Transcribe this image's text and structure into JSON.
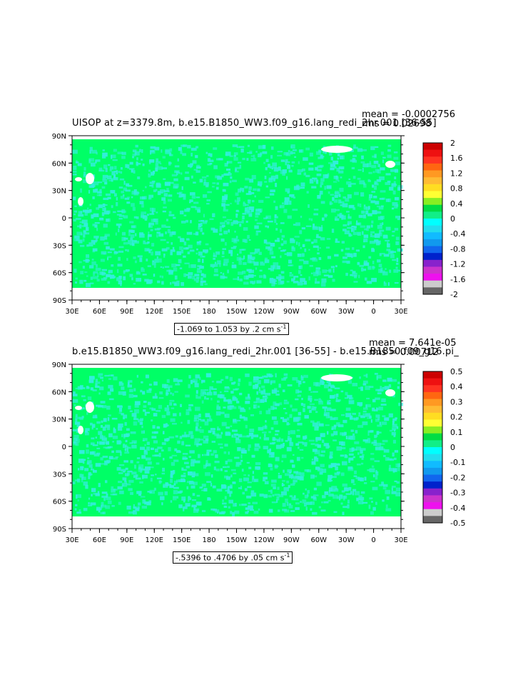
{
  "maps": [
    {
      "title": "UISOP at z=3379.8m, b.e15.B1850_WW3.f09_g16.lang_redi_2hr.001 [36-55]",
      "mean": "mean = -0.0002756",
      "rms": "rms = 0.02698",
      "range_note": "-1.069 to 1.053 by .2 cm s",
      "range_unit_exp": "-1",
      "lat_ticks": [
        "90N",
        "60N",
        "30N",
        "0",
        "30S",
        "60S",
        "90S"
      ],
      "lon_ticks": [
        "30E",
        "60E",
        "90E",
        "120E",
        "150E",
        "180",
        "150W",
        "120W",
        "90W",
        "60W",
        "30W",
        "0",
        "30E"
      ],
      "colorbar_labels": [
        "2",
        "1.6",
        "1.2",
        "0.8",
        "0.4",
        "0",
        "-0.4",
        "-0.8",
        "-1.2",
        "-1.6",
        "-2"
      ],
      "colorbar_colors": [
        "#cc0000",
        "#ee1111",
        "#ff3322",
        "#ff6611",
        "#ff9922",
        "#ffbb33",
        "#ffdd22",
        "#ffff33",
        "#88ee22",
        "#00dd44",
        "#11ee88",
        "#00ffff",
        "#22ddee",
        "#11bbff",
        "#1199ee",
        "#1166ee",
        "#0022cc",
        "#8822cc",
        "#cc33cc",
        "#ee11ee",
        "#cccccc",
        "#666666"
      ]
    },
    {
      "title": "b.e15.B1850_WW3.f09_g16.lang_redi_2hr.001 [36-55] - b.e15.B1850.f09_g16.pi_",
      "mean": "mean = 7.641e-05",
      "rms": "rms = 0.00712",
      "range_note": "-.5396 to .4706 by .05 cm s",
      "range_unit_exp": "-1",
      "lat_ticks": [
        "90N",
        "60N",
        "30N",
        "0",
        "30S",
        "60S",
        "90S"
      ],
      "lon_ticks": [
        "30E",
        "60E",
        "90E",
        "120E",
        "150E",
        "180",
        "150W",
        "120W",
        "90W",
        "60W",
        "30W",
        "0",
        "30E"
      ],
      "colorbar_labels": [
        "0.5",
        "0.4",
        "0.3",
        "0.2",
        "0.1",
        "0",
        "-0.1",
        "-0.2",
        "-0.3",
        "-0.4",
        "-0.5"
      ],
      "colorbar_colors": [
        "#cc0000",
        "#ee1111",
        "#ff3322",
        "#ff6611",
        "#ff9922",
        "#ffbb33",
        "#ffdd22",
        "#ffff33",
        "#88ee22",
        "#00dd44",
        "#11ee88",
        "#00ffff",
        "#22ddee",
        "#11bbff",
        "#1199ee",
        "#1166ee",
        "#0022cc",
        "#8822cc",
        "#cc33cc",
        "#ee11ee",
        "#cccccc",
        "#666666"
      ]
    }
  ],
  "colors": {
    "ocean_zero": "#00ff66",
    "anomaly": "#33eedd",
    "land_white": "#ffffff",
    "frame": "#000000"
  }
}
